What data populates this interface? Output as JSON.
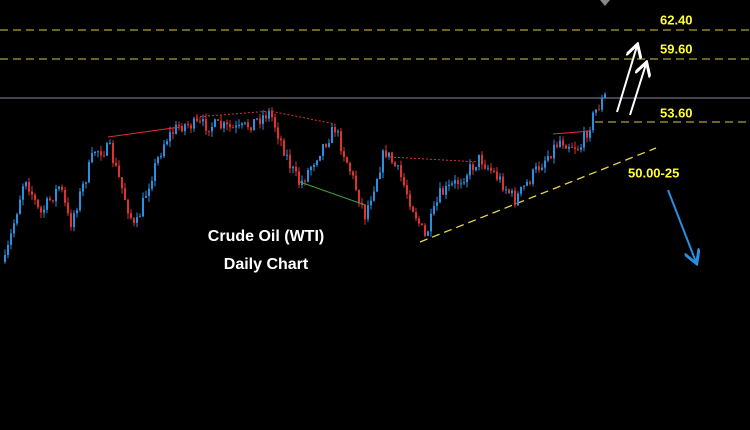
{
  "title": "Crude Oil (WTI)",
  "subtitle": "Daily Chart",
  "levels": [
    "62.40",
    "59.60",
    "53.60",
    "50.00-25"
  ]
}
